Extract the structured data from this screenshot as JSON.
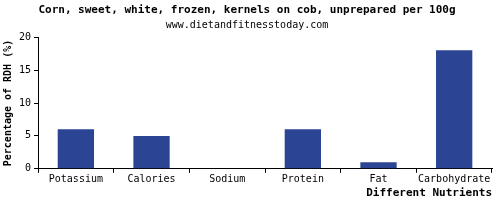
{
  "chart_data": {
    "type": "bar",
    "title": "Corn, sweet, white, frozen, kernels on cob, unprepared per 100g",
    "subtitle": "www.dietandfitnesstoday.com",
    "x_label": "Different Nutrients",
    "y_label": "Percentage of RDH (%)",
    "categories": [
      "Potassium",
      "Calories",
      "Sodium",
      "Protein",
      "Fat",
      "Carbohydrate"
    ],
    "values": [
      6,
      5,
      0,
      6,
      1,
      18
    ],
    "color": "#2b4594",
    "ylim": [
      0,
      20
    ],
    "yticks": [
      0,
      5,
      10,
      15,
      20
    ],
    "grid": false
  }
}
